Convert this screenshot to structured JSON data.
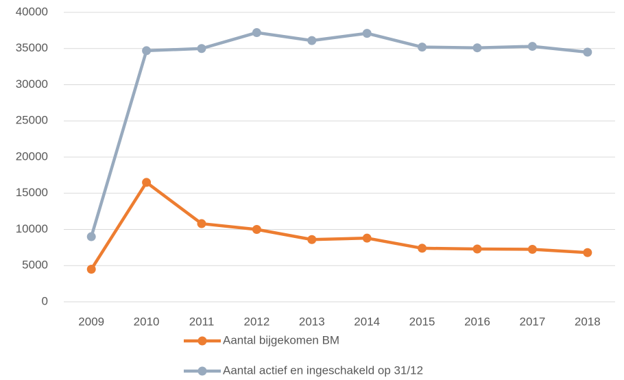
{
  "chart_data": {
    "type": "line",
    "categories": [
      "2009",
      "2010",
      "2011",
      "2012",
      "2013",
      "2014",
      "2015",
      "2016",
      "2017",
      "2018"
    ],
    "series": [
      {
        "name": "Aantal bijgekomen BM",
        "color": "#ed7d31",
        "values": [
          4500,
          16500,
          10800,
          10000,
          8600,
          8800,
          7400,
          7300,
          7250,
          6800
        ]
      },
      {
        "name": "Aantal actief en ingeschakeld op 31/12",
        "color": "#98aabe",
        "values": [
          9000,
          34700,
          35000,
          37200,
          36100,
          37100,
          35200,
          35100,
          35300,
          34500
        ]
      }
    ],
    "ylim": [
      0,
      40000
    ],
    "yticks": [
      0,
      5000,
      10000,
      15000,
      20000,
      25000,
      30000,
      35000,
      40000
    ],
    "grid": true,
    "legend": "bottom"
  }
}
